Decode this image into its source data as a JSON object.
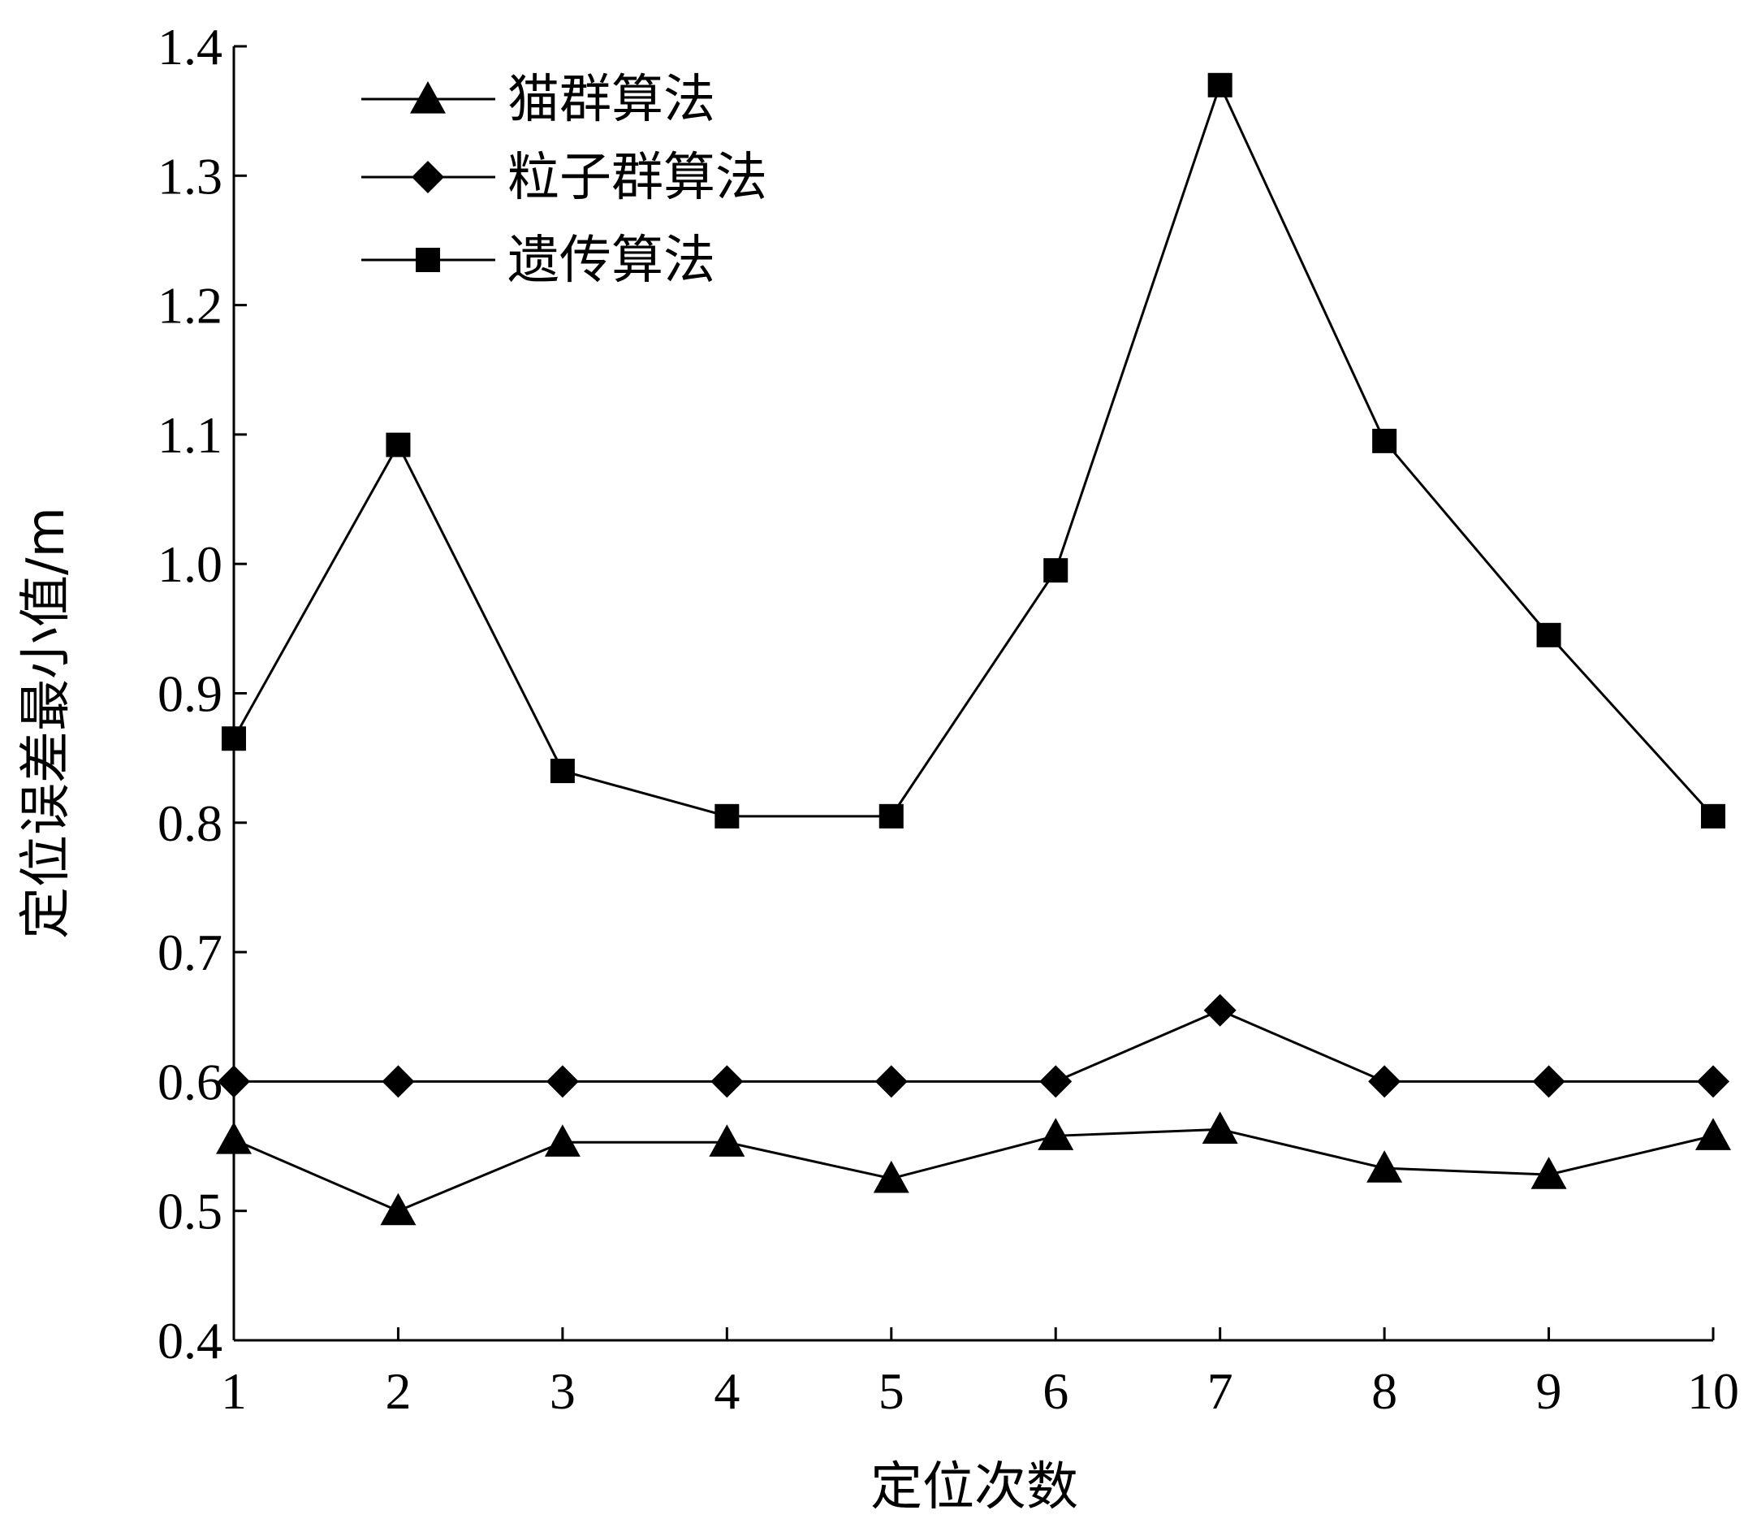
{
  "chart_data": {
    "type": "line",
    "title": "",
    "xlabel": "定位次数",
    "ylabel": "定位误差最小值/m",
    "x": [
      1,
      2,
      3,
      4,
      5,
      6,
      7,
      8,
      9,
      10
    ],
    "xticks": [
      "1",
      "2",
      "3",
      "4",
      "5",
      "6",
      "7",
      "8",
      "9",
      "10"
    ],
    "yticks": [
      "0.4",
      "0.5",
      "0.6",
      "0.7",
      "0.8",
      "0.9",
      "1.0",
      "1.1",
      "1.2",
      "1.3",
      "1.4"
    ],
    "ylim": [
      0.4,
      1.4
    ],
    "xlim": [
      1,
      10
    ],
    "grid": false,
    "legend_position": "top-left",
    "series": [
      {
        "name": "猫群算法",
        "marker": "triangle",
        "color": "#000000",
        "values": [
          0.555,
          0.5,
          0.553,
          0.553,
          0.525,
          0.558,
          0.563,
          0.533,
          0.528,
          0.558
        ]
      },
      {
        "name": "粒子群算法",
        "marker": "diamond",
        "color": "#000000",
        "values": [
          0.6,
          0.6,
          0.6,
          0.6,
          0.6,
          0.6,
          0.655,
          0.6,
          0.6,
          0.6
        ]
      },
      {
        "name": "遗传算法",
        "marker": "square",
        "color": "#000000",
        "values": [
          0.865,
          1.092,
          0.84,
          0.805,
          0.805,
          0.995,
          1.37,
          1.095,
          0.945,
          0.805
        ]
      }
    ]
  }
}
